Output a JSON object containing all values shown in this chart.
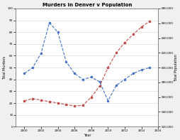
{
  "title": "Murders in Denver v Population",
  "xlabel": "Year",
  "ylabel_left": "Total Murders",
  "ylabel_right": "Total Population",
  "years": [
    2000,
    2001,
    2002,
    2003,
    2004,
    2005,
    2006,
    2007,
    2008,
    2009,
    2010,
    2011,
    2012,
    2013,
    2014,
    2015
  ],
  "murders": [
    45,
    50,
    62,
    88,
    80,
    55,
    45,
    40,
    42,
    38,
    22,
    35,
    40,
    45,
    48,
    50
  ],
  "population": [
    555000,
    558000,
    556000,
    554000,
    552000,
    550000,
    548000,
    549000,
    560000,
    575000,
    600000,
    620000,
    634000,
    645000,
    655000,
    663000
  ],
  "murder_color": "#4472C4",
  "pop_color": "#C0504D",
  "murders_ylim": [
    0,
    100
  ],
  "pop_ylim": [
    520000,
    680000
  ],
  "murders_yticks": [
    0,
    10,
    20,
    30,
    40,
    50,
    60,
    70,
    80,
    90,
    100
  ],
  "pop_yticks": [
    520000,
    540000,
    560000,
    580000,
    600000,
    620000,
    640000,
    660000,
    680000
  ],
  "xticks": [
    2000,
    2002,
    2004,
    2006,
    2008,
    2010,
    2012,
    2014,
    2016
  ],
  "fig_bg": "#f0f0f0",
  "plot_bg": "#ffffff"
}
